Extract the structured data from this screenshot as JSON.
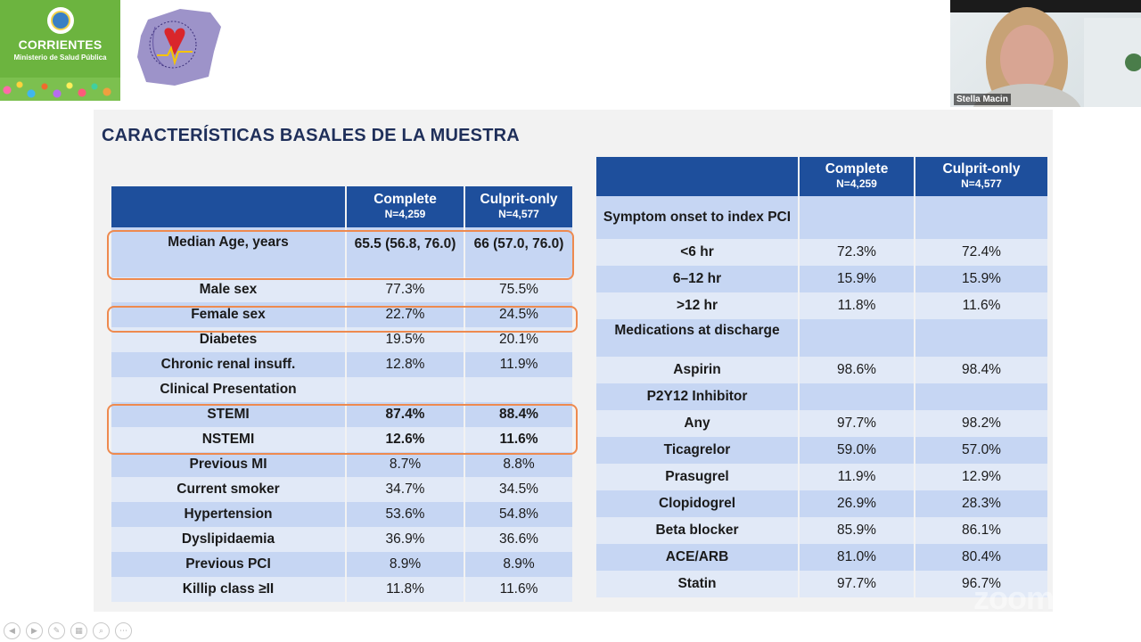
{
  "header": {
    "left_logo": {
      "city": "CORRIENTES",
      "ministry": "Ministerio de Salud Pública"
    }
  },
  "webcam": {
    "participant_name": "Stella Macin"
  },
  "slide": {
    "title": "CARACTERÍSTICAS BASALES DE LA MUESTRA",
    "left_table": {
      "headers": [
        {
          "name": "",
          "sub": ""
        },
        {
          "name": "Complete",
          "sub": "N=4,259"
        },
        {
          "name": "Culprit-only",
          "sub": "N=4,577"
        }
      ],
      "rows": [
        {
          "label": "Median Age, years",
          "complete": "65.5 (56.8, 76.0)",
          "culprit": "66 (57.0, 76.0)"
        },
        {
          "label": "Male sex",
          "complete": "77.3%",
          "culprit": "75.5%"
        },
        {
          "label": "Female sex",
          "complete": "22.7%",
          "culprit": "24.5%"
        },
        {
          "label": "Diabetes",
          "complete": "19.5%",
          "culprit": "20.1%"
        },
        {
          "label": "Chronic renal insuff.",
          "complete": "12.8%",
          "culprit": "11.9%"
        },
        {
          "label": "Clinical Presentation",
          "complete": "",
          "culprit": ""
        },
        {
          "label": "STEMI",
          "complete": "87.4%",
          "culprit": "88.4%"
        },
        {
          "label": "NSTEMI",
          "complete": "12.6%",
          "culprit": "11.6%"
        },
        {
          "label": "Previous MI",
          "complete": "8.7%",
          "culprit": "8.8%"
        },
        {
          "label": "Current smoker",
          "complete": "34.7%",
          "culprit": "34.5%"
        },
        {
          "label": "Hypertension",
          "complete": "53.6%",
          "culprit": "54.8%"
        },
        {
          "label": "Dyslipidaemia",
          "complete": "36.9%",
          "culprit": "36.6%"
        },
        {
          "label": "Previous PCI",
          "complete": "8.9%",
          "culprit": "8.9%"
        },
        {
          "label": "Killip class ≥II",
          "complete": "11.8%",
          "culprit": "11.6%"
        }
      ]
    },
    "right_table": {
      "headers": [
        {
          "name": "",
          "sub": ""
        },
        {
          "name": "Complete",
          "sub": "N=4,259"
        },
        {
          "name": "Culprit-only",
          "sub": "N=4,577"
        }
      ],
      "rows": [
        {
          "label": "Symptom onset to index PCI",
          "complete": "",
          "culprit": ""
        },
        {
          "label": "<6 hr",
          "complete": "72.3%",
          "culprit": "72.4%"
        },
        {
          "label": "6–12 hr",
          "complete": "15.9%",
          "culprit": "15.9%"
        },
        {
          "label": ">12 hr",
          "complete": "11.8%",
          "culprit": "11.6%"
        },
        {
          "label": "Medications at discharge",
          "complete": "",
          "culprit": ""
        },
        {
          "label": "Aspirin",
          "complete": "98.6%",
          "culprit": "98.4%"
        },
        {
          "label": "P2Y12 Inhibitor",
          "complete": "",
          "culprit": ""
        },
        {
          "label": "Any",
          "complete": "97.7%",
          "culprit": "98.2%"
        },
        {
          "label": "Ticagrelor",
          "complete": "59.0%",
          "culprit": "57.0%"
        },
        {
          "label": "Prasugrel",
          "complete": "11.9%",
          "culprit": "12.9%"
        },
        {
          "label": "Clopidogrel",
          "complete": "26.9%",
          "culprit": "28.3%"
        },
        {
          "label": "Beta blocker",
          "complete": "85.9%",
          "culprit": "86.1%"
        },
        {
          "label": "ACE/ARB",
          "complete": "81.0%",
          "culprit": "80.4%"
        },
        {
          "label": "Statin",
          "complete": "97.7%",
          "culprit": "96.7%"
        }
      ]
    }
  },
  "colors": {
    "header_blue": "#1e4f9c",
    "row_light": "#e1e9f7",
    "row_dark": "#c6d6f3",
    "highlight": "#ee8a4f",
    "title": "#1f2f5a"
  }
}
